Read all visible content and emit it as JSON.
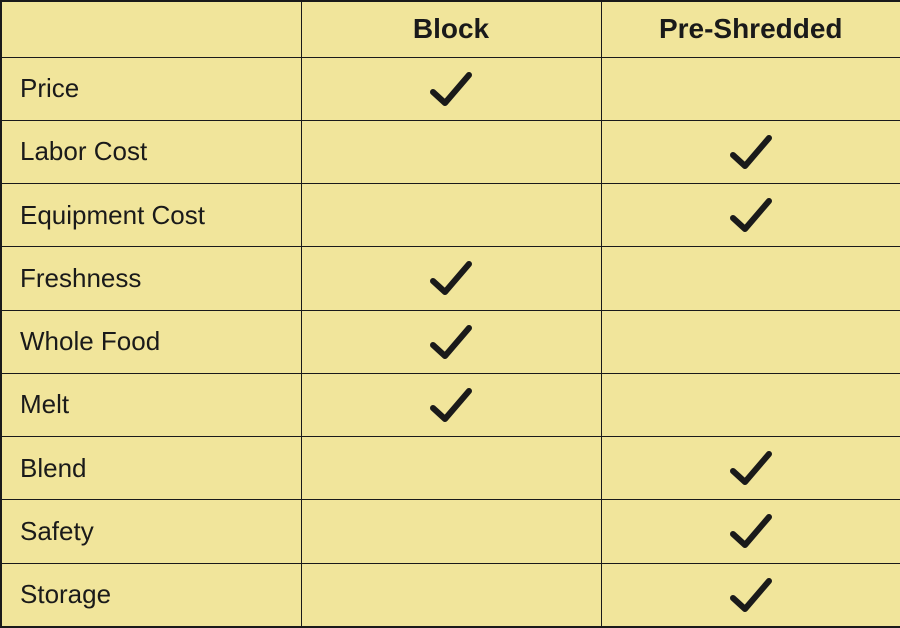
{
  "table": {
    "type": "table",
    "background_color": "#f1e59b",
    "border_color": "#1a1a1a",
    "text_color": "#1a1a1a",
    "header_fontsize": 28,
    "label_fontsize": 26,
    "columns": [
      {
        "key": "label",
        "header": ""
      },
      {
        "key": "block",
        "header": "Block"
      },
      {
        "key": "preshredded",
        "header": "Pre-Shredded"
      }
    ],
    "check_mark": {
      "color": "#1a1a1a",
      "stroke_width": 6
    },
    "rows": [
      {
        "label": "Price",
        "block": true,
        "preshredded": false
      },
      {
        "label": "Labor Cost",
        "block": false,
        "preshredded": true
      },
      {
        "label": "Equipment Cost",
        "block": false,
        "preshredded": true
      },
      {
        "label": "Freshness",
        "block": true,
        "preshredded": false
      },
      {
        "label": "Whole Food",
        "block": true,
        "preshredded": false
      },
      {
        "label": "Melt",
        "block": true,
        "preshredded": false
      },
      {
        "label": "Blend",
        "block": false,
        "preshredded": true
      },
      {
        "label": "Safety",
        "block": false,
        "preshredded": true
      },
      {
        "label": "Storage",
        "block": false,
        "preshredded": true
      }
    ]
  }
}
